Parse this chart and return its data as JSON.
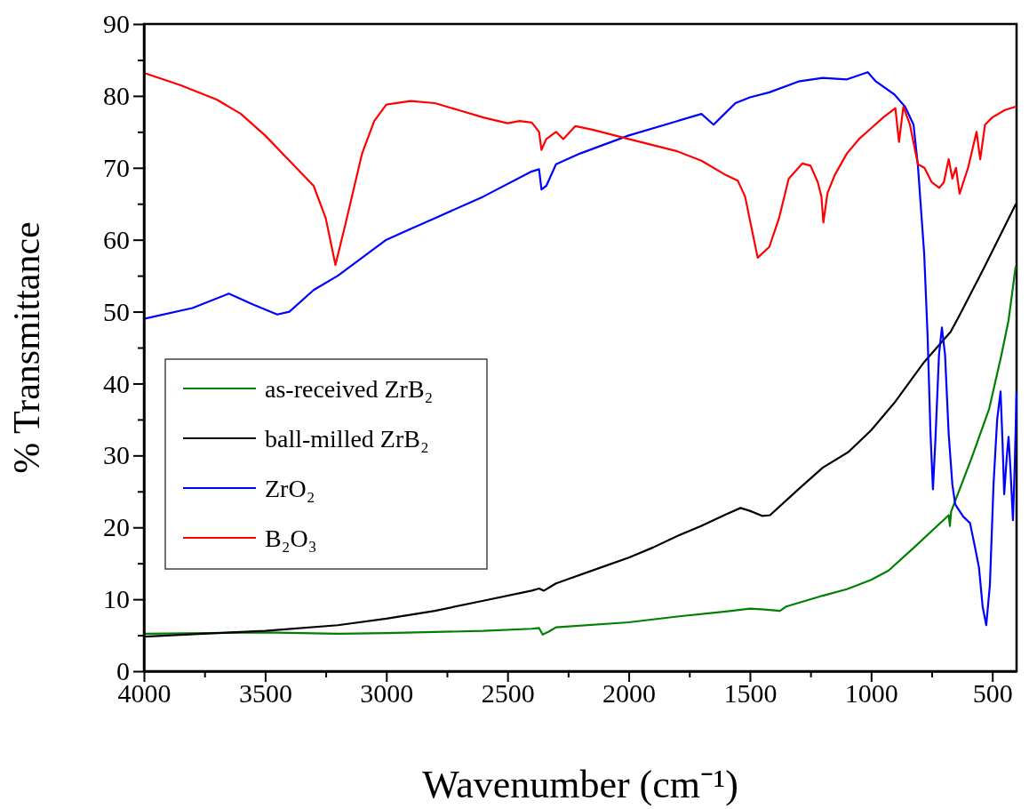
{
  "chart_data": {
    "type": "line",
    "xlabel": "Wavenumber (cm⁻¹)",
    "ylabel": "% Transmittance",
    "xlim": [
      4000,
      400
    ],
    "ylim": [
      0,
      90
    ],
    "xticks": [
      4000,
      {
        "value": 3750,
        "label": null
      },
      3500,
      {
        "value": 3250,
        "label": null
      },
      3000,
      {
        "value": 2750,
        "label": null
      },
      2500,
      {
        "value": 2250,
        "label": null
      },
      2000,
      {
        "value": 1750,
        "label": null
      },
      1500,
      {
        "value": 1250,
        "label": null
      },
      1000,
      {
        "value": 750,
        "label": null
      },
      500
    ],
    "yticks": [
      0,
      {
        "value": 5,
        "label": null
      },
      10,
      {
        "value": 15,
        "label": null
      },
      20,
      {
        "value": 25,
        "label": null
      },
      30,
      {
        "value": 35,
        "label": null
      },
      40,
      {
        "value": 45,
        "label": null
      },
      50,
      {
        "value": 55,
        "label": null
      },
      60,
      {
        "value": 65,
        "label": null
      },
      70,
      {
        "value": 75,
        "label": null
      },
      80,
      {
        "value": 85,
        "label": null
      },
      90
    ],
    "grid": false,
    "legend": "bottom left",
    "line_style": "solid",
    "series": [
      {
        "name": "as-received ZrB₂",
        "color": "#008000",
        "x": [
          4000,
          3500,
          3200,
          3000,
          2600,
          2400,
          2370,
          2355,
          2330,
          2300,
          2000,
          1800,
          1600,
          1500,
          1450,
          1376,
          1350,
          1200,
          1100,
          1000,
          928,
          826,
          680,
          675,
          670,
          587,
          513,
          463,
          433,
          404
        ],
        "values": [
          5.2,
          5.4,
          5.2,
          5.3,
          5.6,
          5.9,
          6,
          5.1,
          5.5,
          6.1,
          6.8,
          7.6,
          8.3,
          8.7,
          8.6,
          8.4,
          9,
          10.5,
          11.4,
          12.7,
          14,
          17.1,
          21.7,
          20.2,
          22.2,
          29.5,
          36.5,
          43.9,
          48.8,
          56.2
        ]
      },
      {
        "name": "ball-milled ZrB₂",
        "color": "#000000",
        "x": [
          4000,
          3700,
          3500,
          3200,
          3000,
          2800,
          2600,
          2400,
          2370,
          2350,
          2300,
          2100,
          2000,
          1900,
          1800,
          1700,
          1600,
          1539,
          1500,
          1450,
          1417,
          1300,
          1200,
          1093,
          1000,
          900,
          781,
          672,
          635,
          537,
          404
        ],
        "values": [
          4.8,
          5.3,
          5.6,
          6.4,
          7.3,
          8.4,
          9.8,
          11.2,
          11.5,
          11.2,
          12.2,
          14.6,
          15.8,
          17.2,
          18.8,
          20.2,
          21.8,
          22.7,
          22.3,
          21.6,
          21.7,
          25.3,
          28.3,
          30.5,
          33.5,
          37.5,
          43,
          47.2,
          49.5,
          55.9,
          64.9
        ]
      },
      {
        "name": "ZrO₂",
        "color": "#0000ff",
        "x": [
          4000,
          3800,
          3650,
          3550,
          3450,
          3400,
          3300,
          3200,
          3000,
          2900,
          2800,
          2600,
          2400,
          2370,
          2360,
          2340,
          2300,
          2200,
          2000,
          1800,
          1700,
          1650,
          1620,
          1560,
          1500,
          1420,
          1300,
          1200,
          1100,
          1014,
          980,
          904,
          860,
          825,
          807,
          781,
          767,
          755,
          745,
          735,
          720,
          708,
          695,
          680,
          665,
          653,
          620,
          592,
          570,
          555,
          540,
          525,
          510,
          495,
          480,
          466,
          458,
          451,
          440,
          433,
          425,
          415,
          408,
          400
        ],
        "values": [
          49,
          50.5,
          52.5,
          51,
          49.6,
          50,
          53,
          55,
          60,
          61.5,
          63,
          66,
          69.5,
          69.8,
          67,
          67.5,
          70.5,
          72,
          74.5,
          76.5,
          77.5,
          76,
          77,
          79,
          79.8,
          80.5,
          82,
          82.5,
          82.3,
          83.3,
          82,
          80.2,
          78.5,
          76,
          70.3,
          58,
          46.6,
          33,
          25.3,
          32,
          44,
          47.8,
          44,
          33,
          26,
          23.2,
          21.5,
          20.6,
          17,
          14.4,
          9,
          6.4,
          12,
          26,
          35,
          38.9,
          32,
          24.6,
          30,
          32.6,
          28,
          21,
          28,
          38.7
        ]
      },
      {
        "name": "B₂O₃",
        "color": "#ff0000",
        "x": [
          4000,
          3850,
          3700,
          3600,
          3500,
          3400,
          3300,
          3250,
          3210,
          3170,
          3100,
          3050,
          3000,
          2900,
          2800,
          2700,
          2600,
          2500,
          2450,
          2400,
          2370,
          2360,
          2340,
          2300,
          2270,
          2220,
          2150,
          2000,
          1800,
          1700,
          1600,
          1550,
          1520,
          1468,
          1420,
          1380,
          1340,
          1284,
          1250,
          1220,
          1205,
          1197,
          1180,
          1150,
          1100,
          1050,
          1000,
          950,
          900,
          885,
          867,
          840,
          807,
          780,
          750,
          719,
          700,
          680,
          665,
          650,
          635,
          600,
          565,
          550,
          530,
          500,
          450,
          404
        ],
        "values": [
          83.2,
          81.5,
          79.5,
          77.5,
          74.5,
          71,
          67.5,
          63,
          56.5,
          62,
          72,
          76.5,
          78.8,
          79.3,
          79,
          78,
          77,
          76.2,
          76.5,
          76.3,
          75,
          72.5,
          74,
          75,
          74,
          75.8,
          75.3,
          74,
          72.3,
          71,
          69,
          68.2,
          66,
          57.5,
          59,
          63,
          68.5,
          70.6,
          70.3,
          68,
          66,
          62.4,
          66.5,
          69,
          72,
          74,
          75.5,
          77,
          78.3,
          73.6,
          78.5,
          76,
          70.5,
          70,
          68,
          67.2,
          68,
          71.2,
          68.5,
          70,
          66.4,
          70,
          75,
          71.2,
          76,
          77,
          78,
          78.5
        ]
      }
    ]
  }
}
